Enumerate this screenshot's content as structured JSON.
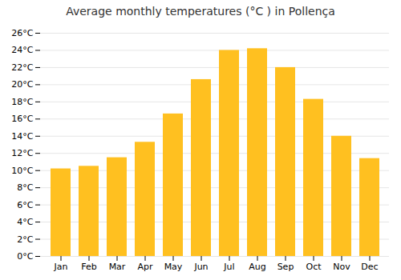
{
  "chart_data": {
    "type": "bar",
    "title": "Average monthly temperatures (°C ) in Pollença",
    "categories": [
      "Jan",
      "Feb",
      "Mar",
      "Apr",
      "May",
      "Jun",
      "Jul",
      "Aug",
      "Sep",
      "Oct",
      "Nov",
      "Dec"
    ],
    "values": [
      10.2,
      10.5,
      11.5,
      13.3,
      16.6,
      20.6,
      24.0,
      24.2,
      22.0,
      18.3,
      14.0,
      11.4
    ],
    "color": "#FFC020",
    "ylim": [
      0,
      26
    ],
    "yticks": [
      {
        "value": 0,
        "label": "0°C"
      },
      {
        "value": 2,
        "label": "2°C"
      },
      {
        "value": 4,
        "label": "4°C"
      },
      {
        "value": 6,
        "label": "6°C"
      },
      {
        "value": 8,
        "label": "8°C"
      },
      {
        "value": 10,
        "label": "10°C"
      },
      {
        "value": 12,
        "label": "12°C"
      },
      {
        "value": 14,
        "label": "14°C"
      },
      {
        "value": 16,
        "label": "16°C"
      },
      {
        "value": 18,
        "label": "18°C"
      },
      {
        "value": 20,
        "label": "20°C"
      },
      {
        "value": 22,
        "label": "22°C"
      },
      {
        "value": 24,
        "label": "24°C"
      },
      {
        "value": 26,
        "label": "26°C"
      }
    ],
    "grid": true
  }
}
